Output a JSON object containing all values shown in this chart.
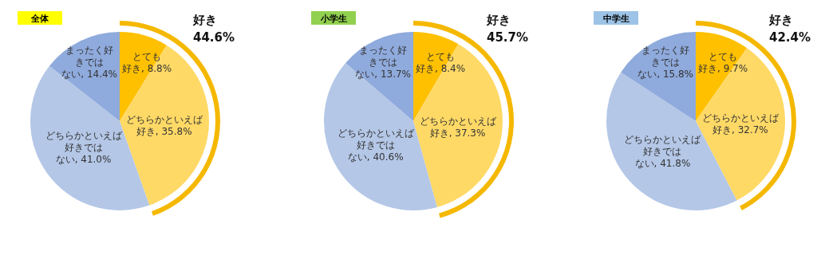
{
  "chart_data": [
    {
      "type": "pie",
      "title": "全体",
      "categories": [
        "とても好き",
        "どちらかといえば好き",
        "どちらかといえば好きではない",
        "まったく好きではない"
      ],
      "values": [
        8.8,
        35.8,
        41.0,
        14.4
      ],
      "value_labels": [
        "8.8%",
        "35.8%",
        "41.0%",
        "14.4%"
      ],
      "colors": [
        "#ffc000",
        "#ffd966",
        "#b4c7e7",
        "#8faadc"
      ],
      "annotations": [
        "好き 44.6%"
      ]
    },
    {
      "type": "pie",
      "title": "小学生",
      "categories": [
        "とても好き",
        "どちらかといえば好き",
        "どちらかといえば好きではない",
        "まったく好きではない"
      ],
      "values": [
        8.4,
        37.3,
        40.6,
        13.7
      ],
      "value_labels": [
        "8.4%",
        "37.3%",
        "40.6%",
        "13.7%"
      ],
      "colors": [
        "#ffc000",
        "#ffd966",
        "#b4c7e7",
        "#8faadc"
      ],
      "annotations": [
        "好き 45.7%"
      ]
    },
    {
      "type": "pie",
      "title": "中学生",
      "categories": [
        "とても好き",
        "どちらかといえば好き",
        "どちらかといえば好きではない",
        "まったく好きではない"
      ],
      "values": [
        9.7,
        32.7,
        41.8,
        15.8
      ],
      "value_labels": [
        "9.7%",
        "32.7%",
        "41.8%",
        "15.8%"
      ],
      "colors": [
        "#ffc000",
        "#ffd966",
        "#b4c7e7",
        "#8faadc"
      ],
      "annotations": [
        "好き 42.4%"
      ]
    }
  ]
}
